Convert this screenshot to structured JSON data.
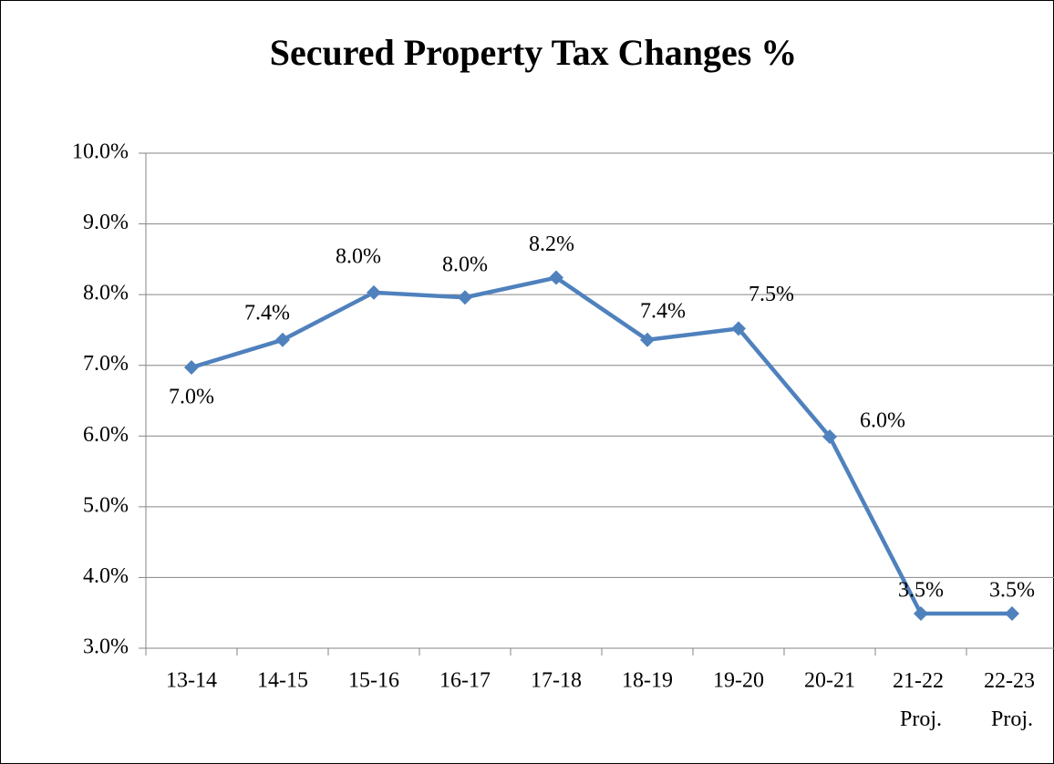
{
  "chart_data": {
    "type": "line",
    "title": "Secured Property Tax Changes %",
    "categories": [
      "13-14",
      "14-15",
      "15-16",
      "16-17",
      "17-18",
      "18-19",
      "19-20",
      "20-21",
      "21-22 Proj.",
      "22-23 Proj."
    ],
    "series": [
      {
        "name": "Secured Property Tax Changes %",
        "color": "#4f81bd",
        "values": [
          6.97,
          7.36,
          8.03,
          7.96,
          8.24,
          7.36,
          7.52,
          5.99,
          3.49,
          3.49
        ],
        "value_labels": [
          "7.0%",
          "7.4%",
          "8.0%",
          "8.0%",
          "8.2%",
          "7.4%",
          "7.5%",
          "6.0%",
          "3.5%",
          "3.5%"
        ]
      }
    ],
    "ylim": [
      3,
      10
    ],
    "yticks": [
      {
        "value": 3,
        "label": "3.0%"
      },
      {
        "value": 4,
        "label": "4.0%"
      },
      {
        "value": 5,
        "label": "5.0%"
      },
      {
        "value": 6,
        "label": "6.0%"
      },
      {
        "value": 7,
        "label": "7.0%"
      },
      {
        "value": 8,
        "label": "8.0%"
      },
      {
        "value": 9,
        "label": "9.0%"
      },
      {
        "value": 10,
        "label": "10.0%"
      }
    ],
    "grid": true
  }
}
